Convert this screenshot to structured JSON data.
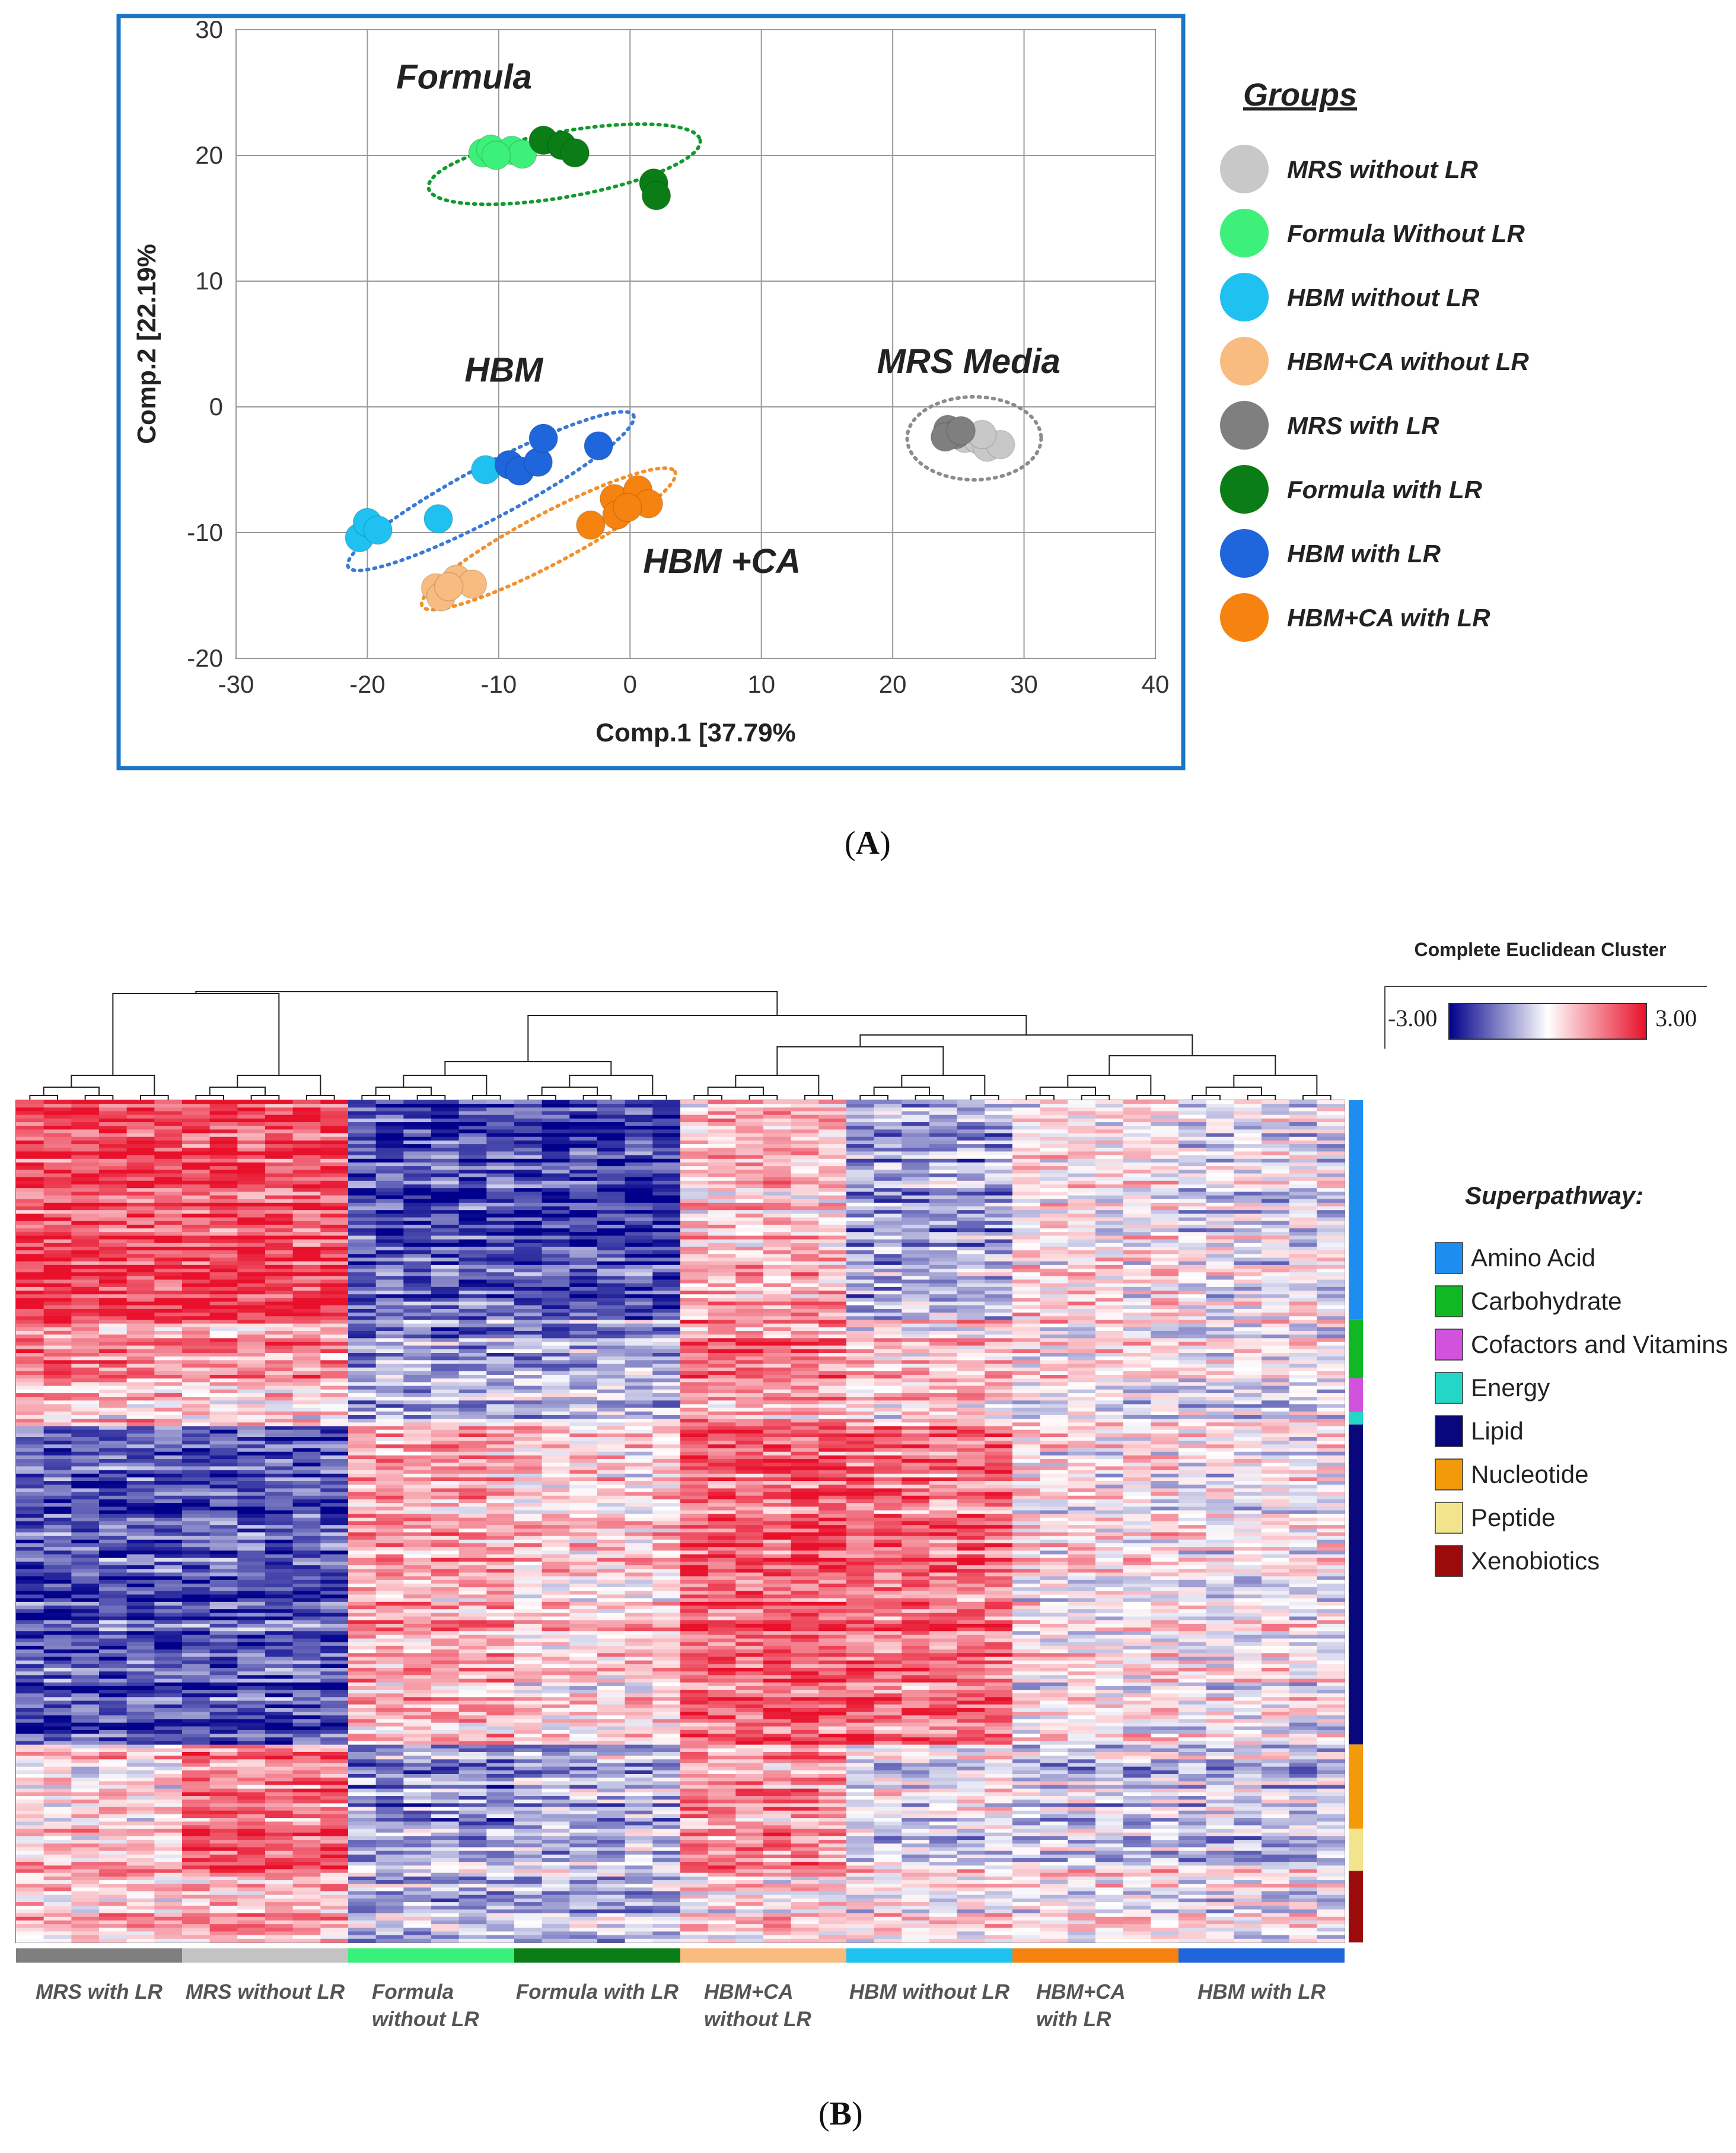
{
  "panel_a": {
    "panel_label": "A",
    "chart_data": {
      "type": "scatter",
      "xlabel": "Comp.1 [37.79%",
      "ylabel": "Comp.2 [22.19%",
      "xlim": [
        -30,
        40
      ],
      "ylim": [
        -20,
        30
      ],
      "xticks": [
        -30,
        -20,
        -10,
        0,
        10,
        20,
        30,
        40
      ],
      "yticks": [
        -20,
        -10,
        0,
        10,
        20,
        30
      ],
      "grid": true,
      "legend_title": "Groups",
      "legend_position": "right",
      "series": [
        {
          "name": "MRS without LR",
          "color": "#c8c8c8",
          "points": [
            [
              25.5,
              -2.5
            ],
            [
              26.5,
              -2.6
            ],
            [
              27.2,
              -3.2
            ],
            [
              28.2,
              -3.0
            ],
            [
              26.8,
              -2.2
            ]
          ]
        },
        {
          "name": "Formula Without LR",
          "color": "#3df07a",
          "points": [
            [
              -11.2,
              20.2
            ],
            [
              -10.6,
              20.5
            ],
            [
              -9.0,
              20.4
            ],
            [
              -8.2,
              20.1
            ],
            [
              -10.2,
              20.0
            ]
          ]
        },
        {
          "name": "HBM without LR",
          "color": "#1ec1ef",
          "points": [
            [
              -20.6,
              -10.4
            ],
            [
              -20.0,
              -9.2
            ],
            [
              -19.2,
              -9.8
            ],
            [
              -14.6,
              -8.9
            ],
            [
              -11.0,
              -5.0
            ]
          ]
        },
        {
          "name": "HBM+CA without LR",
          "color": "#f8bb80",
          "points": [
            [
              -14.8,
              -14.4
            ],
            [
              -14.4,
              -15.1
            ],
            [
              -13.2,
              -13.7
            ],
            [
              -12.0,
              -14.1
            ],
            [
              -13.8,
              -14.3
            ]
          ]
        },
        {
          "name": "MRS with LR",
          "color": "#7f7f7f",
          "points": [
            [
              24.2,
              -1.8
            ],
            [
              24.8,
              -2.2
            ],
            [
              24.0,
              -2.4
            ],
            [
              25.2,
              -1.9
            ]
          ]
        },
        {
          "name": "Formula with LR",
          "color": "#0b7d16",
          "points": [
            [
              -6.6,
              21.2
            ],
            [
              -5.2,
              20.8
            ],
            [
              -4.2,
              20.2
            ],
            [
              1.8,
              17.8
            ],
            [
              2.0,
              16.8
            ]
          ]
        },
        {
          "name": "HBM with LR",
          "color": "#1f65db",
          "points": [
            [
              -9.2,
              -4.6
            ],
            [
              -8.4,
              -5.1
            ],
            [
              -7.0,
              -4.4
            ],
            [
              -6.6,
              -2.5
            ],
            [
              -2.4,
              -3.1
            ]
          ]
        },
        {
          "name": "HBM+CA with LR",
          "color": "#f6830f",
          "points": [
            [
              -3.0,
              -9.4
            ],
            [
              -1.2,
              -7.3
            ],
            [
              -1.0,
              -8.6
            ],
            [
              0.6,
              -6.6
            ],
            [
              1.4,
              -7.7
            ],
            [
              -0.2,
              -8.0
            ]
          ]
        }
      ],
      "annotations": [
        {
          "text": "Formula",
          "x": -17.8,
          "y": 25.3
        },
        {
          "text": "HBM",
          "x": -12.6,
          "y": 2.0
        },
        {
          "text": "HBM +CA",
          "x": 1.0,
          "y": -13.2
        },
        {
          "text": "MRS Media",
          "x": 18.8,
          "y": 2.7
        }
      ],
      "ellipses": [
        {
          "color": "#119a2e",
          "cx": -5.0,
          "cy": 19.3,
          "rx": 10.5,
          "ry": 2.6,
          "angle": -10
        },
        {
          "color": "#3a79d6",
          "cx": -10.6,
          "cy": -6.7,
          "rx": 12.3,
          "ry": 2.1,
          "angle": -28
        },
        {
          "color": "#f3902b",
          "cx": -6.2,
          "cy": -10.5,
          "rx": 10.9,
          "ry": 2.0,
          "angle": -28
        },
        {
          "color": "#8c8c8c",
          "cx": 26.2,
          "cy": -2.5,
          "rx": 5.1,
          "ry": 3.3,
          "angle": 0
        }
      ]
    }
  },
  "panel_b": {
    "panel_label": "B",
    "chart_data": {
      "type": "heatmap",
      "color_scale_title": "Complete Euclidean Cluster",
      "scale_min_label": "-3.00",
      "scale_max_label": "3.00",
      "scale_colors": [
        "#00008b",
        "#ffffff",
        "#e8102a"
      ],
      "legend_title": "Superpathway:",
      "superpathways": [
        {
          "name": "Amino Acid",
          "color": "#1d8ef0",
          "fraction": 0.26
        },
        {
          "name": "Carbohydrate",
          "color": "#10b924",
          "fraction": 0.07
        },
        {
          "name": "Cofactors and Vitamins",
          "color": "#d152dc",
          "fraction": 0.04
        },
        {
          "name": "Energy",
          "color": "#24d6c6",
          "fraction": 0.015
        },
        {
          "name": "Lipid",
          "color": "#08087c",
          "fraction": 0.38
        },
        {
          "name": "Nucleotide",
          "color": "#f29a0a",
          "fraction": 0.1
        },
        {
          "name": "Peptide",
          "color": "#f2e48c",
          "fraction": 0.05
        },
        {
          "name": "Xenobiotics",
          "color": "#9c0b0b",
          "fraction": 0.085
        }
      ],
      "groups": [
        {
          "label_lines": [
            "MRS with LR"
          ],
          "color": "#7f7f7f"
        },
        {
          "label_lines": [
            "MRS without LR"
          ],
          "color": "#c3c3c3"
        },
        {
          "label_lines": [
            "Formula",
            "without LR"
          ],
          "color": "#3af07c"
        },
        {
          "label_lines": [
            "Formula with LR"
          ],
          "color": "#0b7d16"
        },
        {
          "label_lines": [
            "HBM+CA",
            "without LR"
          ],
          "color": "#f8bb80"
        },
        {
          "label_lines": [
            "HBM without LR"
          ],
          "color": "#1ec1ef"
        },
        {
          "label_lines": [
            "HBM+CA",
            "with LR"
          ],
          "color": "#f6830f"
        },
        {
          "label_lines": [
            "HBM with LR"
          ],
          "color": "#1f65db"
        }
      ],
      "group_profiles_by_pathway": [
        [
          0.9,
          0.9,
          -0.8,
          -0.9,
          0.3,
          -0.4,
          0.1,
          -0.1
        ],
        [
          0.6,
          0.5,
          -0.5,
          -0.4,
          0.6,
          0.2,
          0.1,
          0.0
        ],
        [
          0.4,
          0.3,
          -0.3,
          -0.2,
          0.5,
          0.3,
          0.0,
          -0.1
        ],
        [
          0.3,
          0.2,
          -0.2,
          -0.2,
          0.4,
          0.2,
          0.0,
          0.0
        ],
        [
          -0.8,
          -0.8,
          0.4,
          0.2,
          0.8,
          0.7,
          0.1,
          0.0
        ],
        [
          0.2,
          0.7,
          -0.5,
          -0.3,
          0.5,
          0.0,
          -0.2,
          -0.2
        ],
        [
          0.3,
          0.9,
          -0.4,
          -0.3,
          0.6,
          -0.2,
          -0.2,
          -0.3
        ],
        [
          0.3,
          0.4,
          -0.3,
          -0.3,
          0.2,
          0.1,
          0.1,
          0.0
        ]
      ]
    }
  }
}
